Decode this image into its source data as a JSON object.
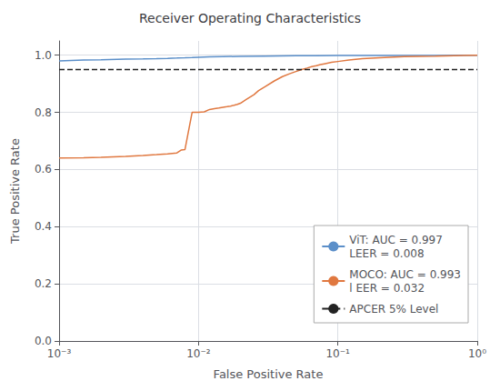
{
  "chart_data": {
    "type": "line",
    "title": "Receiver Operating Characteristics",
    "xlabel": "False Positive Rate",
    "ylabel": "True Positive Rate",
    "log": "x",
    "xlim": [
      0.001,
      1.0
    ],
    "ylim": [
      0.0,
      1.05
    ],
    "xticks": [
      {
        "value": 0.001,
        "label": "10⁻³"
      },
      {
        "value": 0.01,
        "label": "10⁻²"
      },
      {
        "value": 0.1,
        "label": "10⁻¹"
      },
      {
        "value": 1.0,
        "label": "10⁰"
      }
    ],
    "yticks": [
      {
        "value": 0.0,
        "label": "0.0"
      },
      0.2,
      0.4,
      0.6,
      0.8,
      {
        "value": 1.0,
        "label": "1.0"
      }
    ],
    "grid": true,
    "legend": "lower right",
    "series": [
      {
        "name": "ViT: AUC = 0.997\nLEER = 0.008",
        "color": "#5b8fc9",
        "x": [
          0.001,
          0.0015,
          0.002,
          0.003,
          0.004,
          0.005,
          0.006,
          0.007,
          0.008,
          0.009,
          0.01,
          0.012,
          0.015,
          0.02,
          0.03,
          0.05,
          0.07,
          0.1,
          0.2,
          0.5,
          1.0
        ],
        "values": [
          0.98,
          0.983,
          0.984,
          0.986,
          0.987,
          0.988,
          0.989,
          0.99,
          0.991,
          0.992,
          0.993,
          0.994,
          0.995,
          0.996,
          0.997,
          0.998,
          0.998,
          0.999,
          0.999,
          0.999,
          1.0
        ]
      },
      {
        "name": "MOCO: AUC = 0.993\nl EER = 0.032",
        "color": "#e07840",
        "x": [
          0.001,
          0.0015,
          0.002,
          0.003,
          0.004,
          0.005,
          0.006,
          0.007,
          0.0075,
          0.008,
          0.009,
          0.0095,
          0.01,
          0.011,
          0.012,
          0.013,
          0.014,
          0.015,
          0.016,
          0.017,
          0.018,
          0.019,
          0.02,
          0.022,
          0.025,
          0.027,
          0.03,
          0.035,
          0.04,
          0.045,
          0.05,
          0.055,
          0.06,
          0.065,
          0.07,
          0.075,
          0.08,
          0.09,
          0.1,
          0.12,
          0.15,
          0.2,
          0.3,
          0.5,
          1.0
        ],
        "values": [
          0.64,
          0.641,
          0.643,
          0.646,
          0.649,
          0.652,
          0.655,
          0.658,
          0.668,
          0.67,
          0.8,
          0.8,
          0.8,
          0.802,
          0.81,
          0.813,
          0.815,
          0.818,
          0.82,
          0.822,
          0.825,
          0.828,
          0.832,
          0.845,
          0.862,
          0.876,
          0.89,
          0.91,
          0.925,
          0.935,
          0.943,
          0.95,
          0.955,
          0.96,
          0.963,
          0.967,
          0.97,
          0.975,
          0.978,
          0.983,
          0.988,
          0.991,
          0.995,
          0.997,
          1.0
        ]
      },
      {
        "name": "APCER 5% Level",
        "type": "hline",
        "color": "#222222",
        "line_style": "dashed",
        "values": [
          0.95
        ]
      }
    ]
  }
}
